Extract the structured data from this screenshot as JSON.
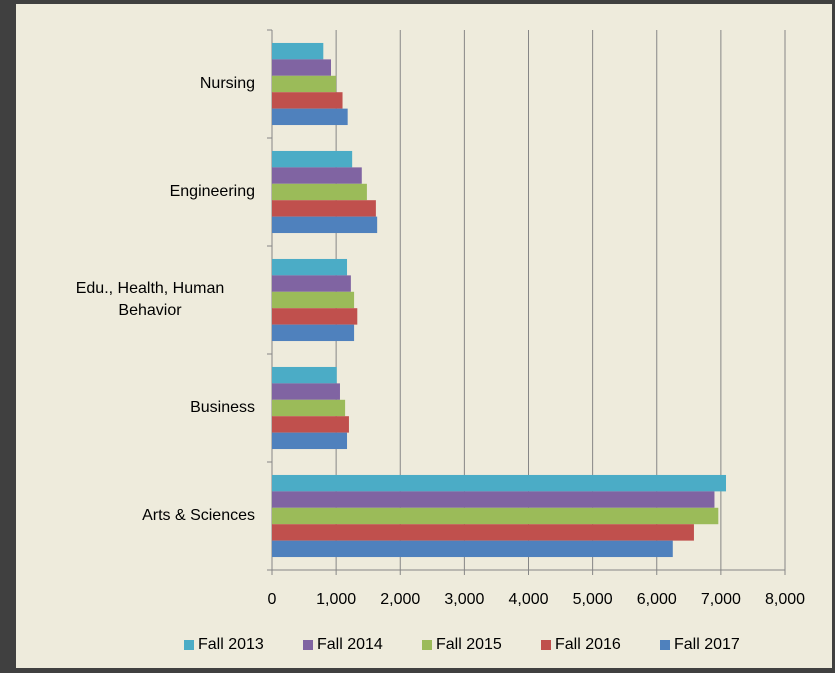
{
  "chart_data": {
    "type": "hbar",
    "categories": [
      "Arts & Sciences",
      "Business",
      "Edu., Health, Human Behavior",
      "Engineering",
      "Nursing"
    ],
    "series": [
      {
        "name": "Fall 2013",
        "color": "#4bacc6",
        "values": [
          7080,
          1010,
          1170,
          1250,
          800
        ]
      },
      {
        "name": "Fall 2014",
        "color": "#8064a2",
        "values": [
          6900,
          1060,
          1230,
          1400,
          920
        ]
      },
      {
        "name": "Fall 2015",
        "color": "#9bbb59",
        "values": [
          6960,
          1140,
          1280,
          1480,
          1000
        ]
      },
      {
        "name": "Fall 2016",
        "color": "#c0504d",
        "values": [
          6580,
          1200,
          1330,
          1620,
          1100
        ]
      },
      {
        "name": "Fall 2017",
        "color": "#4f81bd",
        "values": [
          6250,
          1170,
          1280,
          1640,
          1180
        ]
      }
    ],
    "xlim": [
      0,
      8000
    ],
    "xticks": [
      0,
      {
        "value": 1000,
        "label": "1,000"
      },
      {
        "value": 2000,
        "label": "2,000"
      },
      {
        "value": 3000,
        "label": "3,000"
      },
      {
        "value": 4000,
        "label": "4,000"
      },
      {
        "value": 5000,
        "label": "5,000"
      },
      {
        "value": 6000,
        "label": "6,000"
      },
      {
        "value": 7000,
        "label": "7,000"
      },
      {
        "value": 8000,
        "label": "8,000"
      }
    ],
    "grid": true,
    "legend": "bottom"
  }
}
